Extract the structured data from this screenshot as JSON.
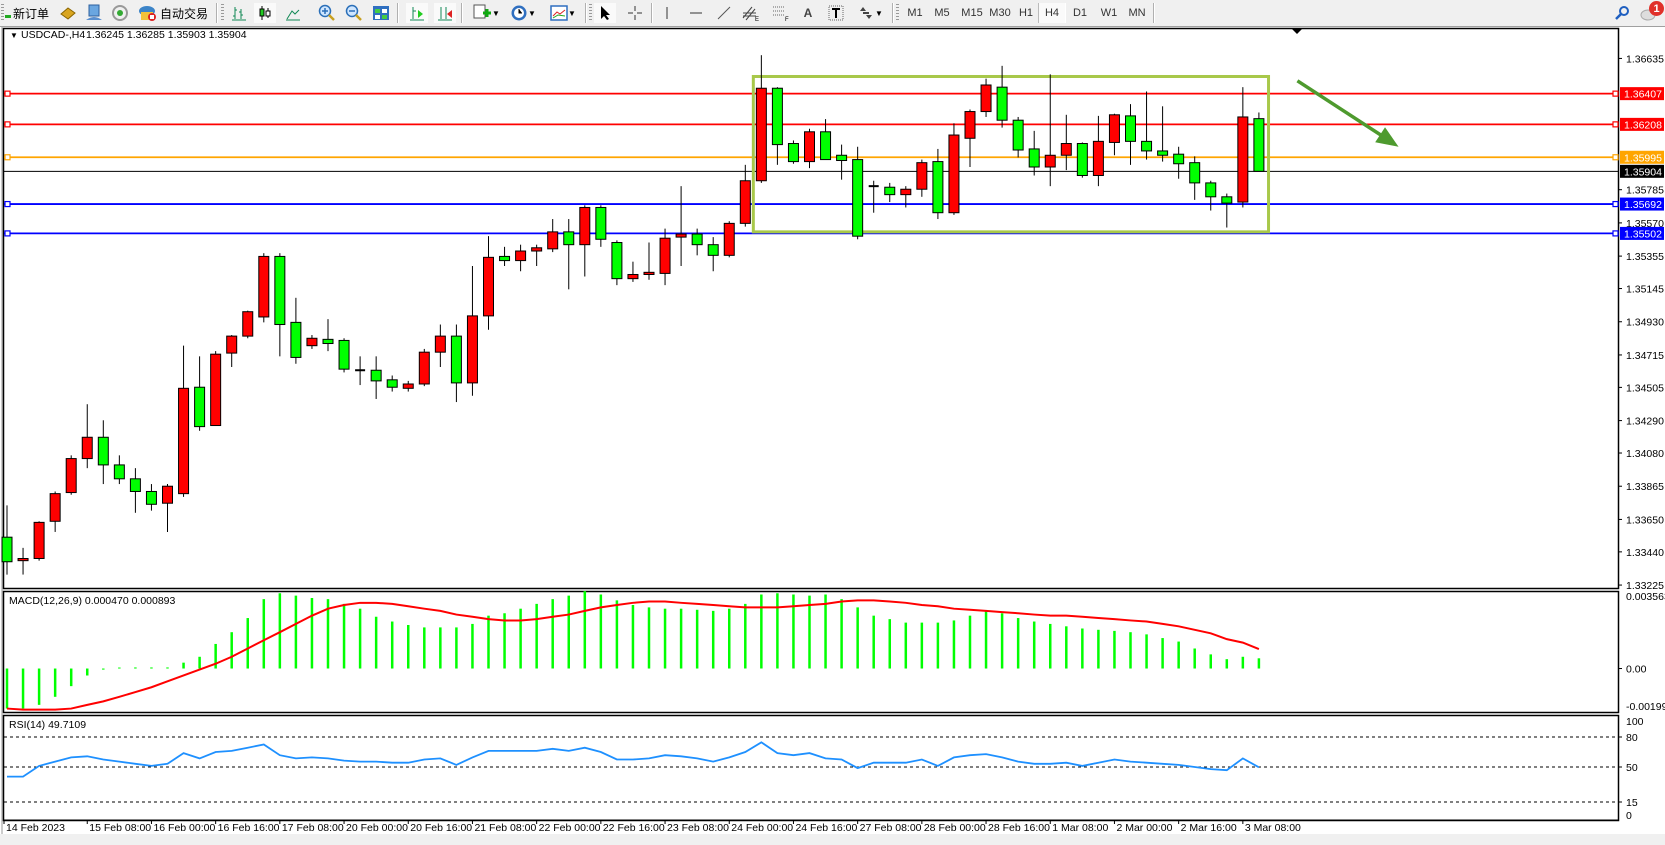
{
  "toolbar": {
    "new_order": {
      "label": "新订单",
      "icon": "new-order-plus-icon"
    },
    "auto_trading": {
      "label": "自动交易",
      "icon": "auto-trading-icon"
    },
    "icons": [
      "market-watch-gold-icon",
      "navigator-icon",
      "signals-icon",
      "bar-chart-icon",
      "candlestick-chart-icon",
      "line-chart-icon",
      "zoom-in-icon",
      "zoom-out-icon",
      "tile-windows-icon",
      "auto-scroll-icon",
      "chart-shift-icon",
      "new-chart-icon",
      "periods-clock-icon",
      "templates-icon",
      "cursor-icon",
      "crosshair-icon",
      "vertical-line-icon",
      "horizontal-line-icon",
      "trendline-icon",
      "equidistant-channel-icon",
      "fibonacci-icon",
      "text-icon",
      "text-label-icon",
      "arrows-icon",
      "search-icon",
      "notifications-icon"
    ],
    "timeframes": [
      "M1",
      "M5",
      "M15",
      "M30",
      "H1",
      "H4",
      "D1",
      "W1",
      "MN"
    ],
    "active_timeframe": "H4",
    "notification_count": "1"
  },
  "chart": {
    "symbol_header": "USDCAD-,H4",
    "ohlc_header": "1.36245 1.36285 1.35903 1.35904",
    "colors": {
      "bull": "#ff0000",
      "bear": "#00ff00",
      "outline": "#000000",
      "macd_hist": "#00ff00",
      "macd_signal": "#ff0000",
      "rsi": "#1e90ff",
      "rectangle": "#a8c84a",
      "arrow": "#4e9a2e"
    }
  },
  "chart_data": {
    "type": "candlestick",
    "symbol": "USDCAD-",
    "timeframe": "H4",
    "price_ticks": [
      "1.36635",
      "1.35785",
      "1.35570",
      "1.35355",
      "1.35145",
      "1.34930",
      "1.34715",
      "1.34505",
      "1.34290",
      "1.34080",
      "1.33865",
      "1.33650",
      "1.33440",
      "1.33225"
    ],
    "ylim": [
      1.33206,
      1.36832
    ],
    "time_labels": [
      "14 Feb 2023",
      "15 Feb 08:00",
      "16 Feb 00:00",
      "16 Feb 16:00",
      "17 Feb 08:00",
      "20 Feb 00:00",
      "20 Feb 16:00",
      "21 Feb 08:00",
      "22 Feb 00:00",
      "22 Feb 16:00",
      "23 Feb 08:00",
      "24 Feb 00:00",
      "24 Feb 16:00",
      "27 Feb 08:00",
      "28 Feb 00:00",
      "28 Feb 16:00",
      "1 Mar 08:00",
      "2 Mar 00:00",
      "2 Mar 16:00",
      "3 Mar 08:00"
    ],
    "candles_ohlc": [
      [
        1.33535,
        1.33741,
        1.33293,
        1.33376
      ],
      [
        1.33383,
        1.33466,
        1.33293,
        1.33397
      ],
      [
        1.33397,
        1.33638,
        1.33383,
        1.33631
      ],
      [
        1.33638,
        1.33831,
        1.33569,
        1.33817
      ],
      [
        1.33824,
        1.34065,
        1.3381,
        1.34044
      ],
      [
        1.34044,
        1.34396,
        1.33982,
        1.34182
      ],
      [
        1.34182,
        1.34292,
        1.33879,
        1.34003
      ],
      [
        1.34003,
        1.34065,
        1.33879,
        1.33913
      ],
      [
        1.33913,
        1.33982,
        1.33693,
        1.33831
      ],
      [
        1.33831,
        1.33879,
        1.33707,
        1.33748
      ],
      [
        1.33755,
        1.33879,
        1.33569,
        1.33865
      ],
      [
        1.33817,
        1.34775,
        1.33796,
        1.34499
      ],
      [
        1.34506,
        1.34706,
        1.34224,
        1.34251
      ],
      [
        1.34258,
        1.3474,
        1.34258,
        1.3472
      ],
      [
        1.34727,
        1.34844,
        1.34637,
        1.34837
      ],
      [
        1.34837,
        1.35002,
        1.34823,
        1.34995
      ],
      [
        1.34961,
        1.35374,
        1.34926,
        1.35353
      ],
      [
        1.35353,
        1.35374,
        1.34706,
        1.34912
      ],
      [
        1.34926,
        1.35085,
        1.34658,
        1.34699
      ],
      [
        1.34775,
        1.34844,
        1.34754,
        1.34823
      ],
      [
        1.34816,
        1.34947,
        1.3474,
        1.34789
      ],
      [
        1.34809,
        1.34823,
        1.34602,
        1.34623
      ],
      [
        1.34616,
        1.34706,
        1.3452,
        1.34616
      ],
      [
        1.34616,
        1.34706,
        1.3443,
        1.34547
      ],
      [
        1.34554,
        1.34582,
        1.34478,
        1.34506
      ],
      [
        1.34499,
        1.34547,
        1.34478,
        1.34527
      ],
      [
        1.34527,
        1.34754,
        1.34513,
        1.34733
      ],
      [
        1.34733,
        1.34912,
        1.34637,
        1.34837
      ],
      [
        1.34837,
        1.34912,
        1.3441,
        1.34534
      ],
      [
        1.34534,
        1.35291,
        1.34451,
        1.34968
      ],
      [
        1.34968,
        1.35484,
        1.34878,
        1.35347
      ],
      [
        1.35353,
        1.35415,
        1.35291,
        1.35326
      ],
      [
        1.35326,
        1.35429,
        1.35257,
        1.35388
      ],
      [
        1.35388,
        1.35429,
        1.35291,
        1.35409
      ],
      [
        1.35402,
        1.35595,
        1.35381,
        1.35512
      ],
      [
        1.35512,
        1.35595,
        1.3514,
        1.35429
      ],
      [
        1.35429,
        1.35684,
        1.35223,
        1.3567
      ],
      [
        1.3567,
        1.35684,
        1.35415,
        1.35464
      ],
      [
        1.35443,
        1.35457,
        1.35167,
        1.35209
      ],
      [
        1.35209,
        1.35319,
        1.35188,
        1.35236
      ],
      [
        1.35236,
        1.35443,
        1.35202,
        1.3525
      ],
      [
        1.35243,
        1.35533,
        1.35167,
        1.35471
      ],
      [
        1.35478,
        1.35808,
        1.35291,
        1.35498
      ],
      [
        1.35498,
        1.35533,
        1.3536,
        1.35429
      ],
      [
        1.35429,
        1.35478,
        1.35257,
        1.3536
      ],
      [
        1.3536,
        1.35581,
        1.35347,
        1.35567
      ],
      [
        1.35567,
        1.35946,
        1.35546,
        1.35843
      ],
      [
        1.35843,
        1.36656,
        1.35829,
        1.36442
      ],
      [
        1.36442,
        1.36449,
        1.35946,
        1.36077
      ],
      [
        1.36084,
        1.36104,
        1.35953,
        1.35967
      ],
      [
        1.35967,
        1.3618,
        1.35925,
        1.3616
      ],
      [
        1.3616,
        1.36242,
        1.3598,
        1.3598
      ],
      [
        1.36008,
        1.36077,
        1.3585,
        1.35974
      ],
      [
        1.3598,
        1.36063,
        1.35464,
        1.35484
      ],
      [
        1.35808,
        1.35843,
        1.35636,
        1.35808
      ],
      [
        1.35801,
        1.35829,
        1.35705,
        1.35753
      ],
      [
        1.35753,
        1.35808,
        1.3567,
        1.35788
      ],
      [
        1.35788,
        1.3598,
        1.35739,
        1.3596
      ],
      [
        1.35967,
        1.36049,
        1.35595,
        1.35636
      ],
      [
        1.35636,
        1.36215,
        1.35622,
        1.36139
      ],
      [
        1.36118,
        1.36304,
        1.35932,
        1.36291
      ],
      [
        1.36291,
        1.36504,
        1.36256,
        1.36463
      ],
      [
        1.36449,
        1.36587,
        1.36187,
        1.36235
      ],
      [
        1.36235,
        1.36256,
        1.35994,
        1.36042
      ],
      [
        1.36049,
        1.36166,
        1.35877,
        1.35932
      ],
      [
        1.35932,
        1.36532,
        1.35808,
        1.36008
      ],
      [
        1.36008,
        1.3627,
        1.35912,
        1.36084
      ],
      [
        1.36084,
        1.36091,
        1.35863,
        1.35877
      ],
      [
        1.35877,
        1.36263,
        1.35808,
        1.36098
      ],
      [
        1.36091,
        1.36277,
        1.36008,
        1.3627
      ],
      [
        1.36263,
        1.36339,
        1.35946,
        1.36098
      ],
      [
        1.36098,
        1.36421,
        1.3598,
        1.36036
      ],
      [
        1.36036,
        1.36325,
        1.35967,
        1.36008
      ],
      [
        1.36015,
        1.36063,
        1.35856,
        1.35953
      ],
      [
        1.3596,
        1.36001,
        1.35719,
        1.35829
      ],
      [
        1.35829,
        1.35843,
        1.3565,
        1.35739
      ],
      [
        1.35739,
        1.3576,
        1.3554,
        1.35698
      ],
      [
        1.35705,
        1.36449,
        1.3567,
        1.36256
      ],
      [
        1.36245,
        1.36285,
        1.35903,
        1.35904
      ]
    ],
    "horizontal_lines": [
      {
        "price": "1.36407",
        "color": "#ff0000"
      },
      {
        "price": "1.36208",
        "color": "#ff0000"
      },
      {
        "price": "1.35995",
        "color": "#ffa500"
      },
      {
        "price": "1.35904",
        "color": "#000000"
      },
      {
        "price": "1.35692",
        "color": "#0000ff"
      },
      {
        "price": "1.35502",
        "color": "#0000ff"
      }
    ],
    "rectangle": {
      "from_bar": 46.5,
      "to_bar": 78.6,
      "price_top": 1.36518,
      "price_bottom": 1.35512
    },
    "arrow": {
      "from_bar": 80.4,
      "to_bar": 86.7,
      "price_from": 1.3649,
      "price_to": 1.36063
    },
    "macd": {
      "label": "MACD(12,26,9) 0.000470 0.000893",
      "ticks": [
        "0.003563",
        "0.00",
        "-0.001998"
      ],
      "ylim": [
        -0.001998,
        0.003563
      ],
      "histogram": [
        -0.00184,
        -0.00184,
        -0.00167,
        -0.0013,
        -0.00081,
        -0.00032,
        -5e-05,
        3e-05,
        5e-05,
        5e-05,
        5e-05,
        0.00027,
        0.00054,
        0.00113,
        0.00167,
        0.00232,
        0.00319,
        0.00346,
        0.00335,
        0.00324,
        0.00319,
        0.00297,
        0.00275,
        0.00238,
        0.00216,
        0.002,
        0.00189,
        0.00189,
        0.00189,
        0.00205,
        0.00243,
        0.00254,
        0.00275,
        0.00297,
        0.00319,
        0.00335,
        0.00356,
        0.0034,
        0.00313,
        0.00292,
        0.00281,
        0.00275,
        0.00275,
        0.0027,
        0.00265,
        0.00275,
        0.00297,
        0.0034,
        0.00346,
        0.0034,
        0.00335,
        0.0034,
        0.00319,
        0.00281,
        0.00243,
        0.00227,
        0.00211,
        0.00211,
        0.00211,
        0.00221,
        0.00243,
        0.00265,
        0.00254,
        0.00232,
        0.00216,
        0.00205,
        0.00194,
        0.00184,
        0.00178,
        0.00173,
        0.00167,
        0.00157,
        0.0014,
        0.00124,
        0.00092,
        0.00065,
        0.00043,
        0.00054,
        0.00047
      ],
      "signal": [
        -0.00184,
        -0.00189,
        -0.00189,
        -0.00189,
        -0.00184,
        -0.00167,
        -0.00151,
        -0.0013,
        -0.00108,
        -0.00086,
        -0.00059,
        -0.00032,
        -5e-05,
        0.00022,
        0.00054,
        0.00092,
        0.0013,
        0.00167,
        0.00205,
        0.00243,
        0.00275,
        0.00292,
        0.00302,
        0.00302,
        0.00297,
        0.00286,
        0.00275,
        0.00265,
        0.00248,
        0.00238,
        0.00227,
        0.00221,
        0.00221,
        0.00227,
        0.00238,
        0.00248,
        0.00265,
        0.00281,
        0.00292,
        0.00302,
        0.00308,
        0.00308,
        0.00302,
        0.00297,
        0.00292,
        0.00286,
        0.00281,
        0.00281,
        0.00281,
        0.00286,
        0.00292,
        0.00297,
        0.00308,
        0.00313,
        0.00313,
        0.00308,
        0.00302,
        0.00292,
        0.00286,
        0.00275,
        0.0027,
        0.00265,
        0.00259,
        0.00254,
        0.00248,
        0.00243,
        0.00243,
        0.00238,
        0.00232,
        0.00227,
        0.00221,
        0.00216,
        0.00205,
        0.00194,
        0.00178,
        0.00162,
        0.00135,
        0.00119,
        0.000893
      ]
    },
    "rsi": {
      "label": "RSI(14) 49.7109",
      "ticks": [
        "100",
        "80",
        "50",
        "15",
        "0"
      ],
      "levels": [
        80,
        50,
        15
      ],
      "ylim": [
        0,
        100
      ],
      "values": [
        40.4,
        40.4,
        51.1,
        55.4,
        59.6,
        60.7,
        57.5,
        55.4,
        53.2,
        51.1,
        53.2,
        63.9,
        58.6,
        65.0,
        66.1,
        69.3,
        72.5,
        61.8,
        58.6,
        59.6,
        58.6,
        56.4,
        55.4,
        55.4,
        54.3,
        54.3,
        57.5,
        58.6,
        52.1,
        59.6,
        66.1,
        66.1,
        66.1,
        66.1,
        68.2,
        66.1,
        69.3,
        65.0,
        57.5,
        57.5,
        58.6,
        61.8,
        60.7,
        58.6,
        55.4,
        59.6,
        65.0,
        74.7,
        63.9,
        61.8,
        63.9,
        58.6,
        57.5,
        48.9,
        54.3,
        54.3,
        54.3,
        57.5,
        51.1,
        59.6,
        61.8,
        62.9,
        59.6,
        55.4,
        53.2,
        53.2,
        54.3,
        51.1,
        54.3,
        57.5,
        55.4,
        54.3,
        53.2,
        52.1,
        50.0,
        47.9,
        46.8,
        58.6,
        49.7109
      ]
    }
  }
}
